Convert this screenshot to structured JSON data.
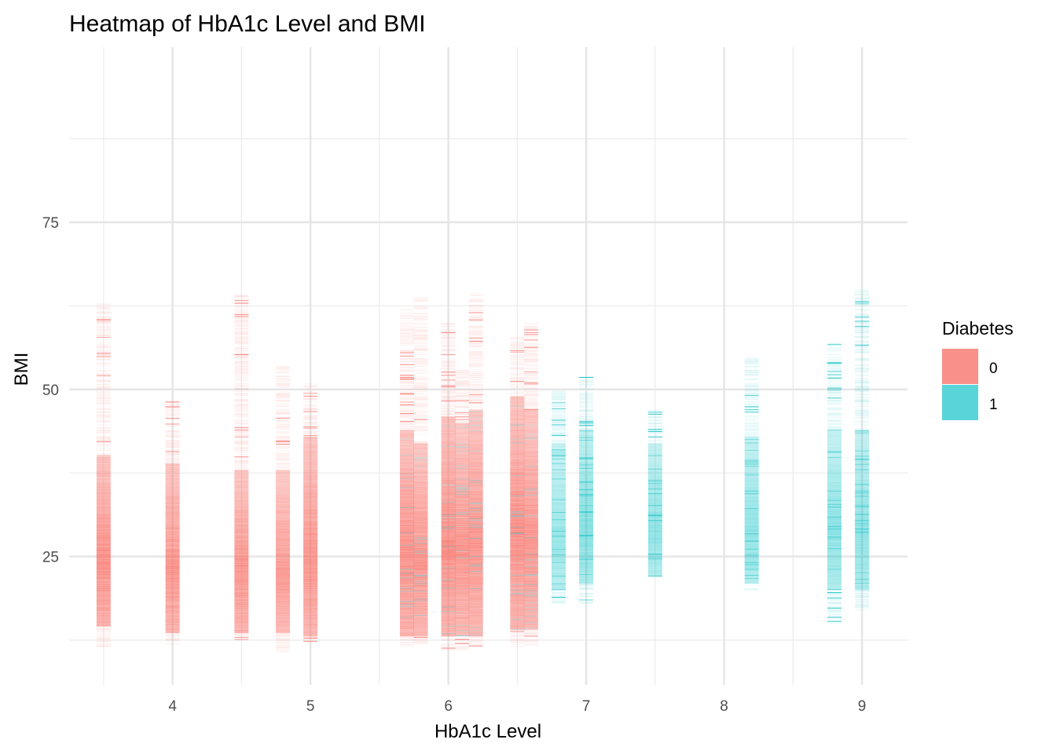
{
  "chart_data": {
    "type": "heatmap",
    "title": "Heatmap of HbA1c Level and BMI",
    "xlabel": "HbA1c Level",
    "ylabel": "BMI",
    "xlim": [
      3.25,
      9.33
    ],
    "ylim": [
      5.8,
      101.2
    ],
    "x_ticks": [
      4,
      5,
      6,
      7,
      8,
      9
    ],
    "x_minor": [
      3.5,
      4.5,
      5.5,
      6.5,
      7.5,
      8.5
    ],
    "y_ticks": [
      25,
      50,
      75
    ],
    "y_minor": [
      12.5,
      37.5,
      62.5,
      87.5
    ],
    "grid": true,
    "legend": {
      "title": "Diabetes",
      "placement": "right",
      "entries": [
        {
          "label": "0",
          "color": "#F8766D"
        },
        {
          "label": "1",
          "color": "#00BFC4"
        }
      ]
    },
    "columns": [
      {
        "x": 3.5,
        "class": "0",
        "bmi_min": 11.5,
        "bmi_max": 63,
        "dense_min": 14.5,
        "dense_max": 40,
        "intensity": 0.95
      },
      {
        "x": 4.0,
        "class": "0",
        "bmi_min": 11.8,
        "bmi_max": 48.5,
        "dense_min": 13.5,
        "dense_max": 39,
        "intensity": 0.9
      },
      {
        "x": 4.5,
        "class": "0",
        "bmi_min": 12.5,
        "bmi_max": 64.2,
        "dense_min": 13.5,
        "dense_max": 38,
        "intensity": 0.9
      },
      {
        "x": 4.8,
        "class": "0",
        "bmi_min": 10.5,
        "bmi_max": 53.5,
        "dense_min": 13.5,
        "dense_max": 38,
        "intensity": 0.85
      },
      {
        "x": 5.0,
        "class": "0",
        "bmi_min": 12,
        "bmi_max": 51,
        "dense_min": 13,
        "dense_max": 43,
        "intensity": 0.9
      },
      {
        "x": 5.7,
        "class": "0",
        "bmi_min": 11.5,
        "bmi_max": 62,
        "dense_min": 13,
        "dense_max": 44,
        "intensity": 0.95
      },
      {
        "x": 5.8,
        "class": "0",
        "bmi_min": 12,
        "bmi_max": 64,
        "dense_min": 13,
        "dense_max": 42,
        "intensity": 0.9
      },
      {
        "x": 6.0,
        "class": "0",
        "bmi_min": 11,
        "bmi_max": 60,
        "dense_min": 13,
        "dense_max": 46,
        "intensity": 0.95
      },
      {
        "x": 6.1,
        "class": "0",
        "bmi_min": 11,
        "bmi_max": 53,
        "dense_min": 13,
        "dense_max": 45,
        "intensity": 0.9
      },
      {
        "x": 6.2,
        "class": "0",
        "bmi_min": 11.5,
        "bmi_max": 64.5,
        "dense_min": 13,
        "dense_max": 47,
        "intensity": 0.9
      },
      {
        "x": 6.5,
        "class": "0",
        "bmi_min": 11.5,
        "bmi_max": 58,
        "dense_min": 14,
        "dense_max": 49,
        "intensity": 0.95
      },
      {
        "x": 6.6,
        "class": "0",
        "bmi_min": 11.5,
        "bmi_max": 60,
        "dense_min": 14,
        "dense_max": 47,
        "intensity": 0.9
      },
      {
        "x": 6.8,
        "class": "1",
        "bmi_min": 18,
        "bmi_max": 50,
        "dense_min": 20,
        "dense_max": 42,
        "intensity": 0.45
      },
      {
        "x": 7.0,
        "class": "1",
        "bmi_min": 18,
        "bmi_max": 52,
        "dense_min": 21,
        "dense_max": 44,
        "intensity": 0.55
      },
      {
        "x": 7.5,
        "class": "1",
        "bmi_min": 22,
        "bmi_max": 47,
        "dense_min": 22,
        "dense_max": 42,
        "intensity": 0.5
      },
      {
        "x": 8.2,
        "class": "1",
        "bmi_min": 20,
        "bmi_max": 55,
        "dense_min": 21,
        "dense_max": 43,
        "intensity": 0.5
      },
      {
        "x": 8.8,
        "class": "1",
        "bmi_min": 15,
        "bmi_max": 57,
        "dense_min": 20,
        "dense_max": 44,
        "intensity": 0.5
      },
      {
        "x": 9.0,
        "class": "1",
        "bmi_min": 17,
        "bmi_max": 65,
        "dense_min": 20,
        "dense_max": 44,
        "intensity": 0.5
      }
    ]
  }
}
